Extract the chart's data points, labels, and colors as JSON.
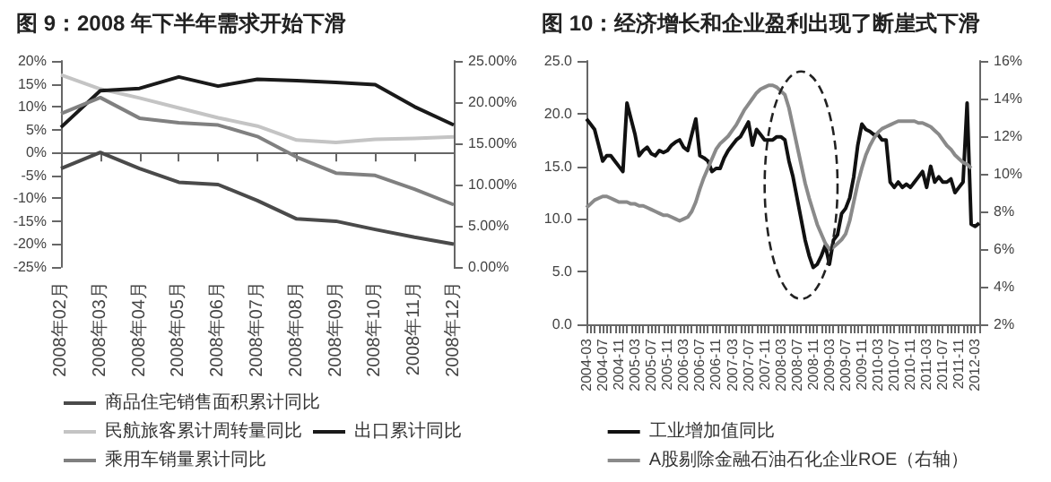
{
  "chart_data": [
    {
      "type": "line",
      "title": "图 9：2008 年下半年需求开始下滑",
      "categories": [
        "2008年02月",
        "2008年03月",
        "2008年04月",
        "2008年05月",
        "2008年06月",
        "2008年07月",
        "2008年08月",
        "2008年09月",
        "2008年10月",
        "2008年11月",
        "2008年12月"
      ],
      "series": [
        {
          "name": "商品住宅销售面积累计同比",
          "color": "#4a4a4a",
          "values": [
            -3.5,
            0,
            -3.5,
            -6.5,
            -7,
            -10.5,
            -14.5,
            -15,
            -16.8,
            -18.5,
            -20
          ]
        },
        {
          "name": "民航旅客累计周转量同比",
          "color": "#c4c4c4",
          "axis": "y2",
          "values": [
            23.3,
            21.6,
            20.5,
            19.3,
            18.1,
            17.1,
            15.4,
            15.1,
            15.5,
            15.6,
            15.8
          ]
        },
        {
          "name": "出口累计同比",
          "color": "#1a1a1a",
          "values": [
            5.5,
            13.5,
            14,
            16.5,
            14.5,
            16,
            15.7,
            15.3,
            14.8,
            10,
            6
          ]
        },
        {
          "name": "乘用车销量累计同比",
          "color": "#808080",
          "values": [
            8.5,
            12,
            7.5,
            6.5,
            6,
            3.5,
            -1,
            -4.5,
            -5,
            -8,
            -11.4
          ]
        }
      ],
      "ylim": [
        -25,
        20
      ],
      "yticks": [
        {
          "value": -25,
          "label": "-25%"
        },
        {
          "value": -20,
          "label": "-20%"
        },
        {
          "value": -15,
          "label": "-15%"
        },
        {
          "value": -10,
          "label": "-10%"
        },
        {
          "value": -5,
          "label": "-5%"
        },
        {
          "value": 0,
          "label": "0%"
        },
        {
          "value": 5,
          "label": "5%"
        },
        {
          "value": 10,
          "label": "10%"
        },
        {
          "value": 15,
          "label": "15%"
        },
        {
          "value": 20,
          "label": "20%"
        }
      ],
      "y2lim": [
        0,
        25
      ],
      "y2ticks": [
        {
          "value": 0,
          "label": "0.00%"
        },
        {
          "value": 5,
          "label": "5.00%"
        },
        {
          "value": 10,
          "label": "10.00%"
        },
        {
          "value": 15,
          "label": "15.00%"
        },
        {
          "value": 20,
          "label": "20.00%"
        },
        {
          "value": 25,
          "label": "25.00%"
        }
      ],
      "marker": "none",
      "legend": "bottom"
    },
    {
      "type": "line",
      "title": "图 10：经济增长和企业盈利出现了断崖式下滑",
      "categories": [
        "2004-03",
        null,
        null,
        null,
        "2004-07",
        null,
        null,
        null,
        "2004-11",
        null,
        null,
        null,
        "2005-03",
        null,
        null,
        null,
        "2005-07",
        null,
        null,
        null,
        "2005-11",
        null,
        null,
        null,
        "2006-03",
        null,
        null,
        null,
        "2006-07",
        null,
        null,
        null,
        "2006-11",
        null,
        null,
        null,
        "2007-03",
        null,
        null,
        null,
        "2007-07",
        null,
        null,
        null,
        "2007-11",
        null,
        null,
        null,
        "2008-03",
        null,
        null,
        null,
        "2008-07",
        null,
        null,
        null,
        "2008-11",
        null,
        null,
        null,
        "2009-03",
        null,
        null,
        null,
        "2009-07",
        null,
        null,
        null,
        "2009-11",
        null,
        null,
        null,
        "2010-03",
        null,
        null,
        null,
        "2010-07",
        null,
        null,
        null,
        "2010-11",
        null,
        null,
        null,
        "2011-03",
        null,
        null,
        null,
        "2011-07",
        null,
        null,
        null,
        "2011-11",
        null,
        null,
        null,
        "2012-03",
        null
      ],
      "series": [
        {
          "name": "工业增加值同比",
          "color": "#111111",
          "values": [
            19.5,
            19,
            18.5,
            17,
            15.5,
            16,
            16,
            15.5,
            15,
            14.5,
            21,
            19.5,
            18,
            16,
            16.5,
            16.8,
            16.2,
            16,
            16.5,
            16.3,
            16.5,
            17,
            17.3,
            17.5,
            16.8,
            16.5,
            18,
            19.5,
            16,
            15.8,
            15.5,
            14.5,
            14.8,
            14.8,
            15.8,
            16.5,
            17,
            17.5,
            17.8,
            18.5,
            19.2,
            17,
            18.5,
            18,
            17.5,
            17.5,
            17.5,
            17.8,
            17.8,
            17.5,
            15.5,
            14,
            12,
            10,
            8,
            6.5,
            5.4,
            5.7,
            6.5,
            7.5,
            5.7,
            8,
            8.5,
            10.5,
            11,
            12,
            14,
            17,
            19,
            18.5,
            18.3,
            18,
            18,
            17.5,
            17.5,
            13.5,
            13,
            13.5,
            13,
            13.3,
            13,
            13.5,
            14,
            14.5,
            13,
            15,
            13.5,
            14,
            13.5,
            13.5,
            13.8,
            12.5,
            13,
            13.5,
            21,
            9.5,
            9.3,
            9.6
          ]
        },
        {
          "name": "A股剔除金融石油石化企业ROE（右轴）",
          "color": "#8a8a8a",
          "axis": "y2",
          "values": [
            8.2,
            8.4,
            8.6,
            8.7,
            8.8,
            8.8,
            8.7,
            8.6,
            8.5,
            8.5,
            8.5,
            8.4,
            8.4,
            8.3,
            8.3,
            8.2,
            8.1,
            8.0,
            7.9,
            7.8,
            7.8,
            7.7,
            7.6,
            7.5,
            7.6,
            7.7,
            8.0,
            8.5,
            9.2,
            9.8,
            10.3,
            10.8,
            11.3,
            11.6,
            11.8,
            12.0,
            12.3,
            12.6,
            13.0,
            13.4,
            13.7,
            14.0,
            14.3,
            14.5,
            14.6,
            14.7,
            14.7,
            14.6,
            14.4,
            14.2,
            13.5,
            12.5,
            11.5,
            10.5,
            9.5,
            8.7,
            8.0,
            7.3,
            6.8,
            6.3,
            6.0,
            6.1,
            6.3,
            6.5,
            6.8,
            7.5,
            8.5,
            9.5,
            10.3,
            11.0,
            11.5,
            11.9,
            12.2,
            12.4,
            12.5,
            12.6,
            12.7,
            12.8,
            12.8,
            12.8,
            12.8,
            12.8,
            12.7,
            12.7,
            12.6,
            12.5,
            12.3,
            12.1,
            11.8,
            11.5,
            11.3,
            11.0,
            10.8,
            10.6,
            10.5,
            10.3,
            null,
            null
          ]
        }
      ],
      "ylim": [
        0,
        25
      ],
      "yticks": [
        {
          "value": 0,
          "label": "0.0"
        },
        {
          "value": 5,
          "label": "5.0"
        },
        {
          "value": 10,
          "label": "10.0"
        },
        {
          "value": 15,
          "label": "15.0"
        },
        {
          "value": 20,
          "label": "20.0"
        },
        {
          "value": 25,
          "label": "25.0"
        }
      ],
      "y2lim": [
        2,
        16
      ],
      "y2ticks": [
        {
          "value": 2,
          "label": "2%"
        },
        {
          "value": 4,
          "label": "4%"
        },
        {
          "value": 6,
          "label": "6%"
        },
        {
          "value": 8,
          "label": "8%"
        },
        {
          "value": 10,
          "label": "10%"
        },
        {
          "value": 12,
          "label": "12%"
        },
        {
          "value": 14,
          "label": "14%"
        },
        {
          "value": 16,
          "label": "16%"
        }
      ],
      "marker": "none",
      "legend": "bottom"
    }
  ]
}
